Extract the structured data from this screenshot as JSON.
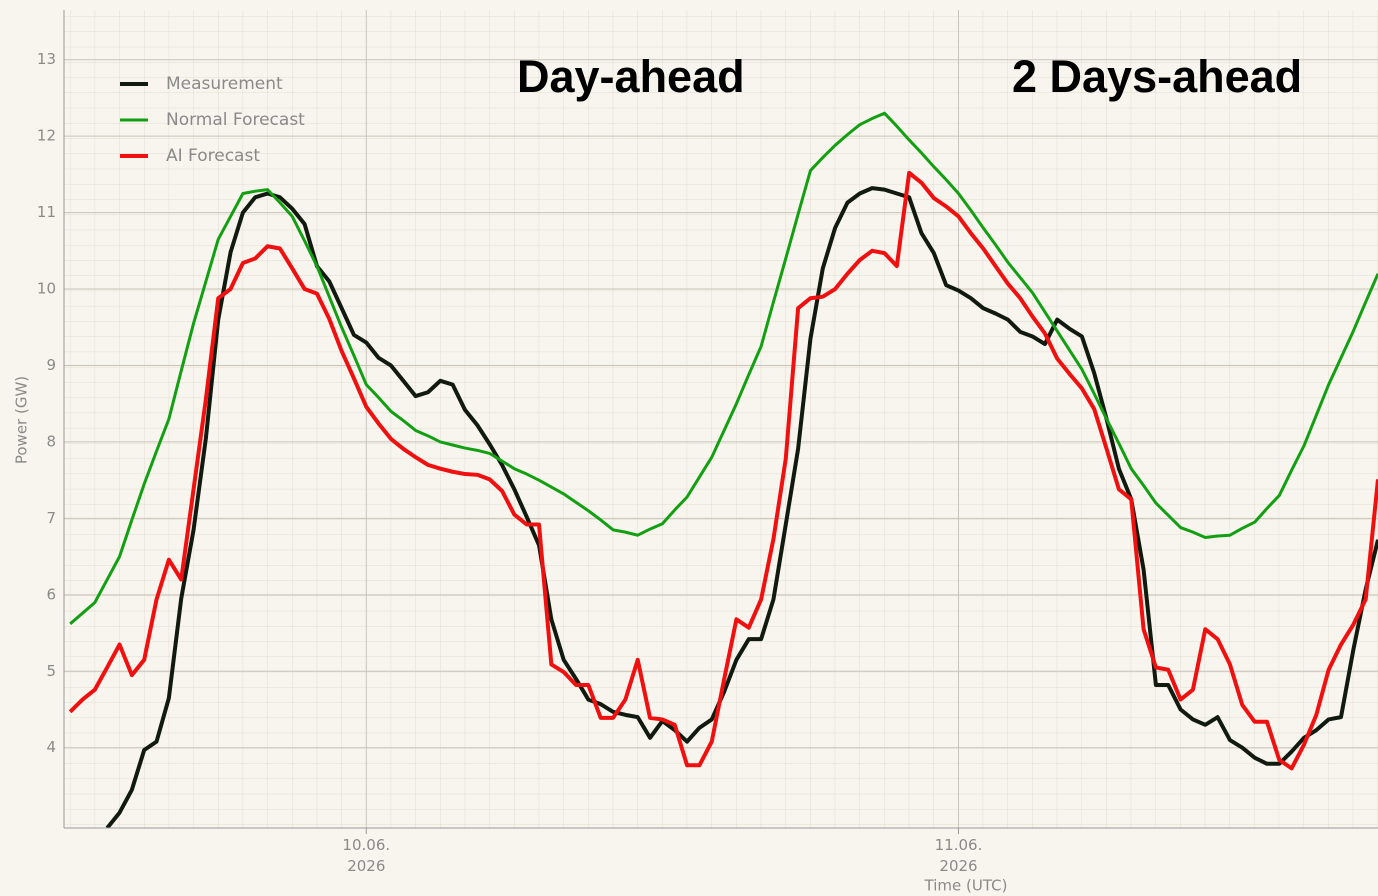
{
  "chart_data": {
    "type": "line",
    "annotations": [
      "Day-ahead",
      "2 Days-ahead"
    ],
    "xlabel": "Time (UTC)",
    "ylabel": "Power (GW)",
    "xlim": [
      11.75,
      65
    ],
    "ylim": [
      2.95,
      13.65
    ],
    "xticks": [
      {
        "value": 24,
        "label": "10.06.\n2026"
      },
      {
        "value": 48,
        "label": "11.06.\n2026"
      }
    ],
    "yticks": [
      4,
      5,
      6,
      7,
      8,
      9,
      10,
      11,
      12,
      13
    ],
    "grid": true,
    "legend": "upper left",
    "x": [
      12,
      12.5,
      13,
      13.5,
      14,
      14.5,
      15,
      15.5,
      16,
      16.5,
      17,
      17.5,
      18,
      18.5,
      19,
      19.5,
      20,
      20.5,
      21,
      21.5,
      22,
      22.5,
      23,
      23.5,
      24,
      24.5,
      25,
      25.5,
      26,
      26.5,
      27,
      27.5,
      28,
      28.5,
      29,
      29.5,
      30,
      30.5,
      31,
      31.5,
      32,
      32.5,
      33,
      33.5,
      34,
      34.5,
      35,
      35.5,
      36,
      36.5,
      37,
      37.5,
      38,
      38.5,
      39,
      39.5,
      40,
      40.5,
      41,
      41.5,
      42,
      42.5,
      43,
      43.5,
      44,
      44.5,
      45,
      45.5,
      46,
      46.5,
      47,
      47.5,
      48,
      48.5,
      49,
      49.5,
      50,
      50.5,
      51,
      51.5,
      52,
      52.5,
      53,
      53.5,
      54,
      54.5,
      55,
      55.5,
      56,
      56.5,
      57,
      57.5,
      58,
      58.5,
      59,
      59.5,
      60,
      60.5,
      61,
      61.5,
      62,
      62.5,
      63,
      63.5,
      64,
      64.5,
      65
    ],
    "series": [
      {
        "name": "Measurement",
        "color": "#111a0f",
        "width": 4,
        "values": [
          null,
          null,
          null,
          2.95,
          3.15,
          3.45,
          3.97,
          4.08,
          4.65,
          5.95,
          6.85,
          8.05,
          9.6,
          10.48,
          11.0,
          11.2,
          11.25,
          11.2,
          11.05,
          10.85,
          10.3,
          10.1,
          9.75,
          9.4,
          9.3,
          9.1,
          9.0,
          8.8,
          8.6,
          8.65,
          8.8,
          8.75,
          8.42,
          8.22,
          7.97,
          7.7,
          7.38,
          7.02,
          6.65,
          5.68,
          5.15,
          4.9,
          4.63,
          4.57,
          4.47,
          4.43,
          4.4,
          4.13,
          4.35,
          4.23,
          4.08,
          4.26,
          4.37,
          4.73,
          5.15,
          5.42,
          5.42,
          5.94,
          6.92,
          7.91,
          9.35,
          10.27,
          10.8,
          11.13,
          11.25,
          11.32,
          11.3,
          11.25,
          11.2,
          10.73,
          10.47,
          10.05,
          9.98,
          9.88,
          9.75,
          9.68,
          9.6,
          9.44,
          9.38,
          9.28,
          9.6,
          9.48,
          9.38,
          8.9,
          8.3,
          7.65,
          7.25,
          6.33,
          4.82,
          4.82,
          4.5,
          4.37,
          4.3,
          4.4,
          4.1,
          4.0,
          3.87,
          3.79,
          3.79,
          3.95,
          4.13,
          4.23,
          4.37,
          4.4,
          5.28,
          6.07,
          6.72
        ]
      },
      {
        "name": "Normal Forecast",
        "color": "#12a012",
        "width": 3,
        "values": [
          5.62,
          5.76,
          5.9,
          6.2,
          6.5,
          6.98,
          7.45,
          7.88,
          8.3,
          8.93,
          9.55,
          10.1,
          10.65,
          10.95,
          11.25,
          11.28,
          11.3,
          11.13,
          10.95,
          10.63,
          10.3,
          9.9,
          9.5,
          9.13,
          8.75,
          8.58,
          8.4,
          8.28,
          8.15,
          8.08,
          8.0,
          7.96,
          7.92,
          7.89,
          7.85,
          7.75,
          7.65,
          7.58,
          7.5,
          7.41,
          7.32,
          7.21,
          7.1,
          6.98,
          6.85,
          6.82,
          6.78,
          6.86,
          6.93,
          7.11,
          7.28,
          7.54,
          7.8,
          8.15,
          8.5,
          8.88,
          9.25,
          9.83,
          10.4,
          10.98,
          11.55,
          11.72,
          11.88,
          12.02,
          12.15,
          12.23,
          12.3,
          12.13,
          11.95,
          11.78,
          11.6,
          11.43,
          11.25,
          11.03,
          10.8,
          10.58,
          10.35,
          10.15,
          9.95,
          9.7,
          9.45,
          9.2,
          8.95,
          8.63,
          8.3,
          7.98,
          7.65,
          7.43,
          7.2,
          7.04,
          6.88,
          6.82,
          6.75,
          6.77,
          6.78,
          6.87,
          6.95,
          7.13,
          7.3,
          7.63,
          7.95,
          8.35,
          8.75,
          9.1,
          9.45,
          9.83,
          10.2
        ]
      },
      {
        "name": "AI Forecast",
        "color": "#f01010",
        "width": 4,
        "values": [
          4.47,
          4.63,
          4.76,
          5.05,
          5.35,
          4.95,
          5.15,
          5.94,
          6.46,
          6.2,
          7.38,
          8.56,
          9.88,
          10.0,
          10.34,
          10.4,
          10.56,
          10.53,
          10.27,
          10.0,
          9.94,
          9.61,
          9.19,
          8.83,
          8.46,
          8.24,
          8.04,
          7.91,
          7.8,
          7.7,
          7.65,
          7.61,
          7.58,
          7.57,
          7.51,
          7.36,
          7.05,
          6.92,
          6.92,
          5.09,
          4.99,
          4.82,
          4.82,
          4.39,
          4.39,
          4.63,
          5.15,
          4.39,
          4.37,
          4.3,
          3.77,
          3.77,
          4.08,
          4.89,
          5.68,
          5.57,
          5.94,
          6.73,
          7.78,
          9.75,
          9.88,
          9.9,
          10.0,
          10.2,
          10.38,
          10.5,
          10.47,
          10.3,
          11.52,
          11.39,
          11.19,
          11.08,
          10.95,
          10.73,
          10.53,
          10.3,
          10.07,
          9.88,
          9.64,
          9.42,
          9.09,
          8.89,
          8.7,
          8.43,
          7.91,
          7.38,
          7.25,
          5.55,
          5.05,
          5.02,
          4.63,
          4.76,
          5.55,
          5.42,
          5.09,
          4.56,
          4.34,
          4.34,
          3.84,
          3.73,
          4.04,
          4.43,
          5.02,
          5.35,
          5.61,
          5.94,
          7.51
        ]
      }
    ]
  }
}
